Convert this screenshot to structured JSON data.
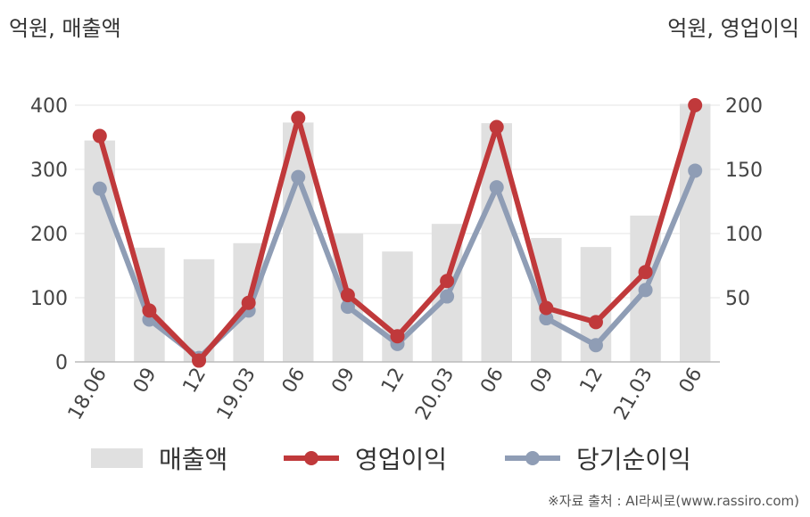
{
  "header": {
    "left_unit": "억원, 매출액",
    "right_unit": "억원, 영업이익"
  },
  "chart_data": {
    "type": "bar+line",
    "categories": [
      "18.06",
      "09",
      "12",
      "19.03",
      "06",
      "09",
      "12",
      "20.03",
      "06",
      "09",
      "12",
      "21.03",
      "06"
    ],
    "series": [
      {
        "name": "매출액",
        "type": "bar",
        "axis": "left",
        "color": "#e0e0e0",
        "values": [
          345,
          178,
          160,
          185,
          373,
          200,
          172,
          215,
          372,
          193,
          179,
          228,
          402
        ]
      },
      {
        "name": "영업이익",
        "type": "line",
        "axis": "right",
        "color": "#c0393b",
        "values": [
          176,
          40,
          1,
          46,
          190,
          52,
          20,
          63,
          183,
          42,
          31,
          70,
          200
        ]
      },
      {
        "name": "당기순이익",
        "type": "line",
        "axis": "right",
        "color": "#8f9db5",
        "values": [
          135,
          33,
          3,
          40,
          144,
          43,
          14,
          51,
          136,
          34,
          13,
          56,
          149
        ]
      }
    ],
    "left_axis": {
      "min": 0,
      "max": 400,
      "ticks": [
        0,
        100,
        200,
        300,
        400
      ]
    },
    "right_axis": {
      "min": 0,
      "max": 200,
      "ticks": [
        50,
        100,
        150,
        200
      ]
    },
    "grid": true,
    "legend_position": "bottom"
  },
  "legend": [
    {
      "label": "매출액"
    },
    {
      "label": "영업이익"
    },
    {
      "label": "당기순이익"
    }
  ],
  "source": "※자료 출처 : AI라씨로(www.rassiro.com)"
}
